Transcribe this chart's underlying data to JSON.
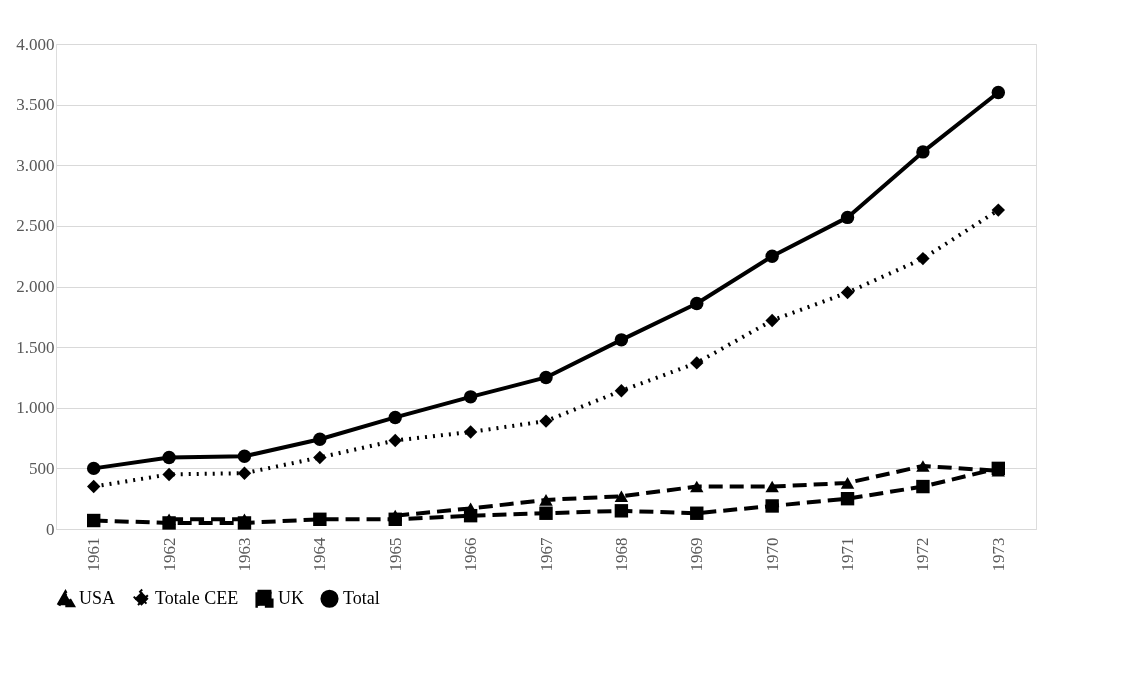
{
  "chart_data": {
    "type": "line",
    "categories": [
      "1961",
      "1962",
      "1963",
      "1964",
      "1965",
      "1966",
      "1967",
      "1968",
      "1969",
      "1970",
      "1971",
      "1972",
      "1973"
    ],
    "series": [
      {
        "name": "USA",
        "color": "#000000",
        "marker": "triangle",
        "line_style": "dashed",
        "values": [
          null,
          80,
          80,
          null,
          110,
          170,
          240,
          270,
          350,
          350,
          380,
          520,
          480
        ]
      },
      {
        "name": "Totale CEE",
        "color": "#000000",
        "marker": "diamond",
        "line_style": "dotted",
        "values": [
          350,
          450,
          460,
          590,
          730,
          800,
          890,
          1140,
          1370,
          1720,
          1950,
          2230,
          2630
        ]
      },
      {
        "name": "UK",
        "color": "#000000",
        "marker": "square",
        "line_style": "dashed",
        "values": [
          70,
          50,
          50,
          80,
          80,
          110,
          130,
          150,
          130,
          190,
          250,
          350,
          500
        ]
      },
      {
        "name": "Total",
        "color": "#000000",
        "marker": "circle",
        "line_style": "solid",
        "values": [
          500,
          590,
          600,
          740,
          920,
          1090,
          1250,
          1560,
          1860,
          2250,
          2570,
          3110,
          3600
        ]
      }
    ],
    "ylim": [
      0,
      4000
    ],
    "yticks": [
      0,
      {
        "value": 500,
        "label": "500"
      },
      {
        "value": 1000,
        "label": "1.000"
      },
      {
        "value": 1500,
        "label": "1.500"
      },
      {
        "value": 2000,
        "label": "2.000"
      },
      {
        "value": 2500,
        "label": "2.500"
      },
      {
        "value": 3000,
        "label": "3.000"
      },
      {
        "value": 3500,
        "label": "3.500"
      },
      {
        "value": 4000,
        "label": "4.000"
      }
    ],
    "grid": "y",
    "legend": "bottom"
  }
}
